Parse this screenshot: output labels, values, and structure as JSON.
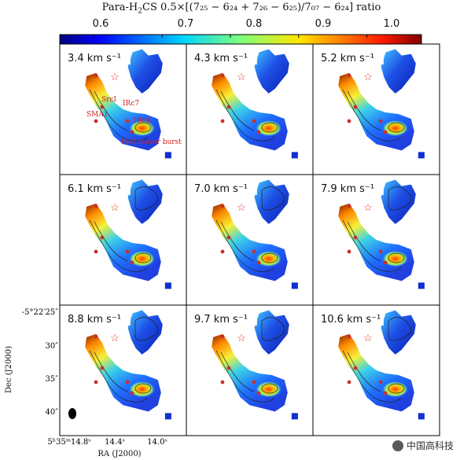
{
  "colorbar": {
    "title_prefix": "Para-H",
    "title_sub": "2",
    "title_suffix": "CS 0.5×[(7₂₅ − 6₂₄ + 7₂₆ − 6₂₅)/7₀₇ − 6₂₄] ratio",
    "ticks": [
      "0.6",
      "0.7",
      "0.8",
      "0.9",
      "1.0"
    ],
    "tick_values": [
      0.6,
      0.7,
      0.8,
      0.9,
      1.0
    ],
    "range": [
      0.55,
      1.08
    ]
  },
  "panels": [
    {
      "velocity": "3.4 km s⁻¹"
    },
    {
      "velocity": "4.3 km s⁻¹"
    },
    {
      "velocity": "5.2 km s⁻¹"
    },
    {
      "velocity": "6.1 km s⁻¹"
    },
    {
      "velocity": "7.0 km s⁻¹"
    },
    {
      "velocity": "7.9 km s⁻¹"
    },
    {
      "velocity": "8.8 km s⁻¹"
    },
    {
      "velocity": "9.7 km s⁻¹"
    },
    {
      "velocity": "10.6 km s⁻¹"
    }
  ],
  "source_labels": [
    "SrcI",
    "IRc7",
    "SMA1",
    "IRc4",
    "H₂O maser burst"
  ],
  "axes": {
    "ylabel": "Dec (J2000)",
    "xlabel": "RA (J2000)",
    "yticks": [
      "-5°22′25″",
      "30″",
      "35″",
      "40″"
    ],
    "xticks": [
      "5ʰ35ᵐ14.8ˢ",
      "14.4ˢ",
      "14.0ˢ"
    ]
  },
  "watermark": "中国高科技",
  "colors": {
    "star": "#e03020",
    "dot": "#c8302a",
    "label": "#d02020"
  }
}
